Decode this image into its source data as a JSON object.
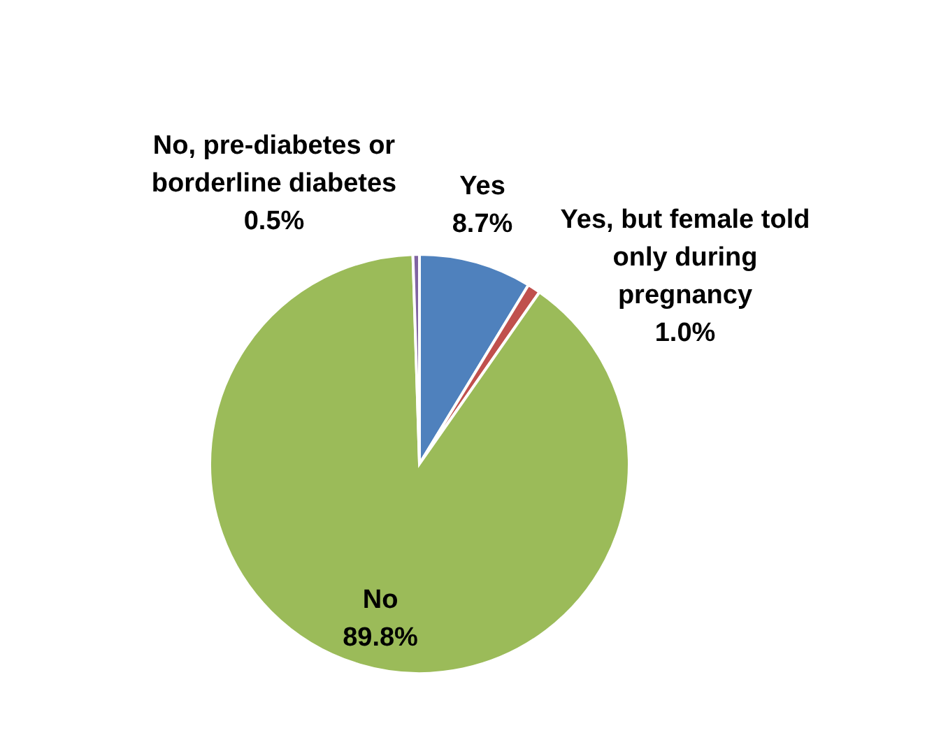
{
  "chart_data": {
    "type": "pie",
    "categories": [
      "Yes",
      "Yes, but female told only during pregnancy",
      "No",
      "No, pre-diabetes or borderline diabetes"
    ],
    "values": [
      8.7,
      1.0,
      89.8,
      0.5
    ],
    "value_labels": [
      "8.7%",
      "1.0%",
      "89.8%",
      "0.5%"
    ],
    "colors": [
      "#4f81bd",
      "#c0504d",
      "#9bbb59",
      "#8064a2"
    ]
  }
}
